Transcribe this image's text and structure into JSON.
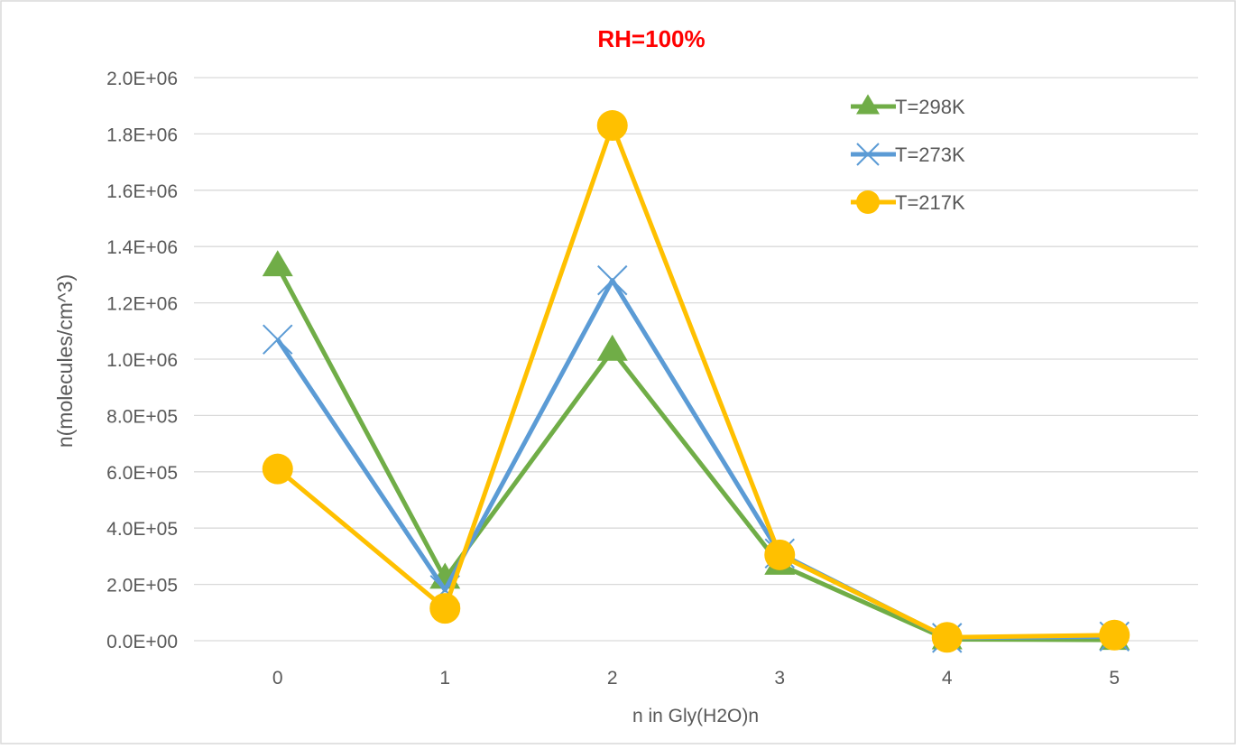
{
  "chart_data": {
    "type": "line",
    "title": "RH=100%",
    "xlabel": "n in Gly(H2O)n",
    "ylabel": "n(molecules/cm^3)",
    "categories": [
      "0",
      "1",
      "2",
      "3",
      "4",
      "5"
    ],
    "ylim": [
      0,
      2000000
    ],
    "yticks": [
      "0.0E+00",
      "2.0E+05",
      "4.0E+05",
      "6.0E+05",
      "8.0E+05",
      "1.0E+06",
      "1.2E+06",
      "1.4E+06",
      "1.6E+06",
      "1.8E+06",
      "2.0E+06"
    ],
    "ytick_values": [
      0,
      200000,
      400000,
      600000,
      800000,
      1000000,
      1200000,
      1400000,
      1600000,
      1800000,
      2000000
    ],
    "grid": true,
    "legend_position": "top-right",
    "series": [
      {
        "name": "T=298K",
        "color": "#70AD47",
        "marker": "triangle",
        "values": [
          1330000,
          220000,
          1030000,
          270000,
          5000,
          3000
        ]
      },
      {
        "name": "T=273K",
        "color": "#5B9BD5",
        "marker": "x",
        "values": [
          1070000,
          180000,
          1280000,
          310000,
          10000,
          15000
        ]
      },
      {
        "name": "T=217K",
        "color": "#FFC000",
        "marker": "circle",
        "values": [
          610000,
          115000,
          1830000,
          305000,
          12000,
          20000
        ]
      }
    ],
    "colors": {
      "title": "#FF0000",
      "axis_text": "#595959",
      "grid": "#D9D9D9"
    }
  }
}
